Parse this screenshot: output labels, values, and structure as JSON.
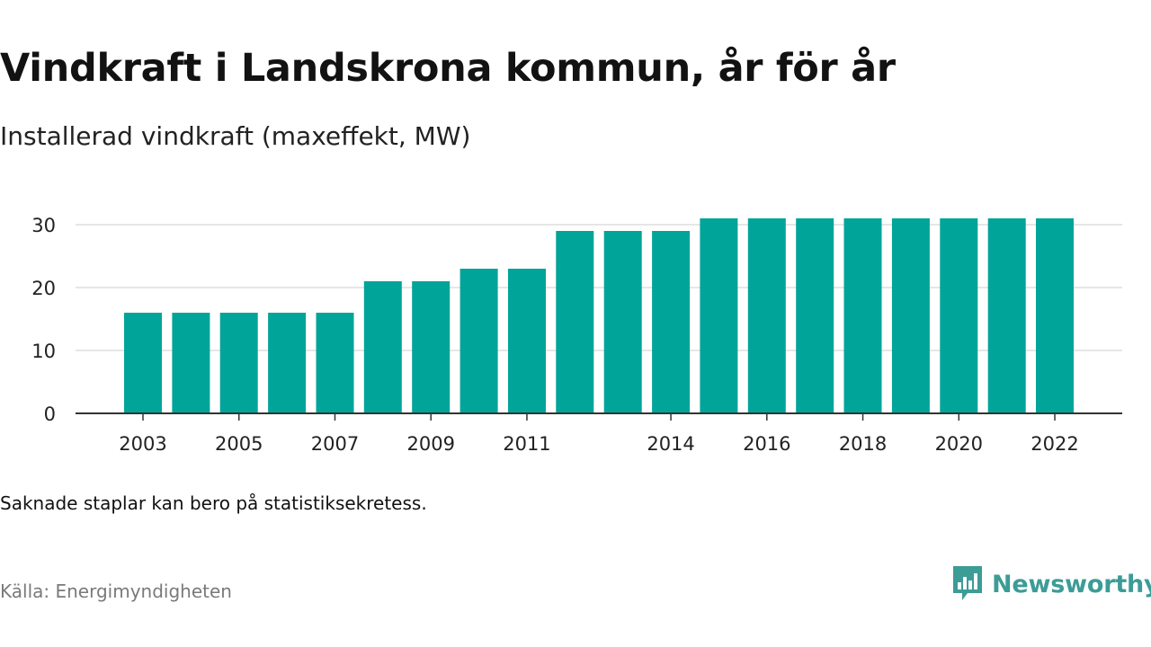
{
  "header": {
    "title": "Vindkraft i Landskrona kommun, år för år",
    "subtitle": "Installerad vindkraft (maxeffekt, MW)"
  },
  "footer": {
    "note": "Saknade staplar kan bero på statistiksekretess.",
    "source": "Källa: Energimyndigheten",
    "brand": "Newsworthy"
  },
  "colors": {
    "bar": "#00a499",
    "grid": "#dddddd",
    "axis": "#333333",
    "brand": "#3c9c96"
  },
  "icons": {
    "brand_logo": "newsworthy-logo-icon"
  },
  "chart_data": {
    "type": "bar",
    "title": "Vindkraft i Landskrona kommun, år för år",
    "subtitle": "Installerad vindkraft (maxeffekt, MW)",
    "xlabel": "",
    "ylabel": "",
    "categories": [
      "2003",
      "2004",
      "2005",
      "2006",
      "2007",
      "2008",
      "2009",
      "2010",
      "2011",
      "2012",
      "2013",
      "2014",
      "2015",
      "2016",
      "2017",
      "2018",
      "2019",
      "2020",
      "2021",
      "2022"
    ],
    "values": [
      16,
      16,
      16,
      16,
      16,
      21,
      21,
      23,
      23,
      29,
      29,
      29,
      31,
      31,
      31,
      31,
      31,
      31,
      31,
      31
    ],
    "x_tick_labels": [
      "2003",
      "2005",
      "2007",
      "2009",
      "2011",
      "2014",
      "2016",
      "2018",
      "2020",
      "2022"
    ],
    "y_ticks": [
      0,
      10,
      20,
      30
    ],
    "ylim": [
      0,
      31
    ],
    "grid": true,
    "legend": "none"
  }
}
